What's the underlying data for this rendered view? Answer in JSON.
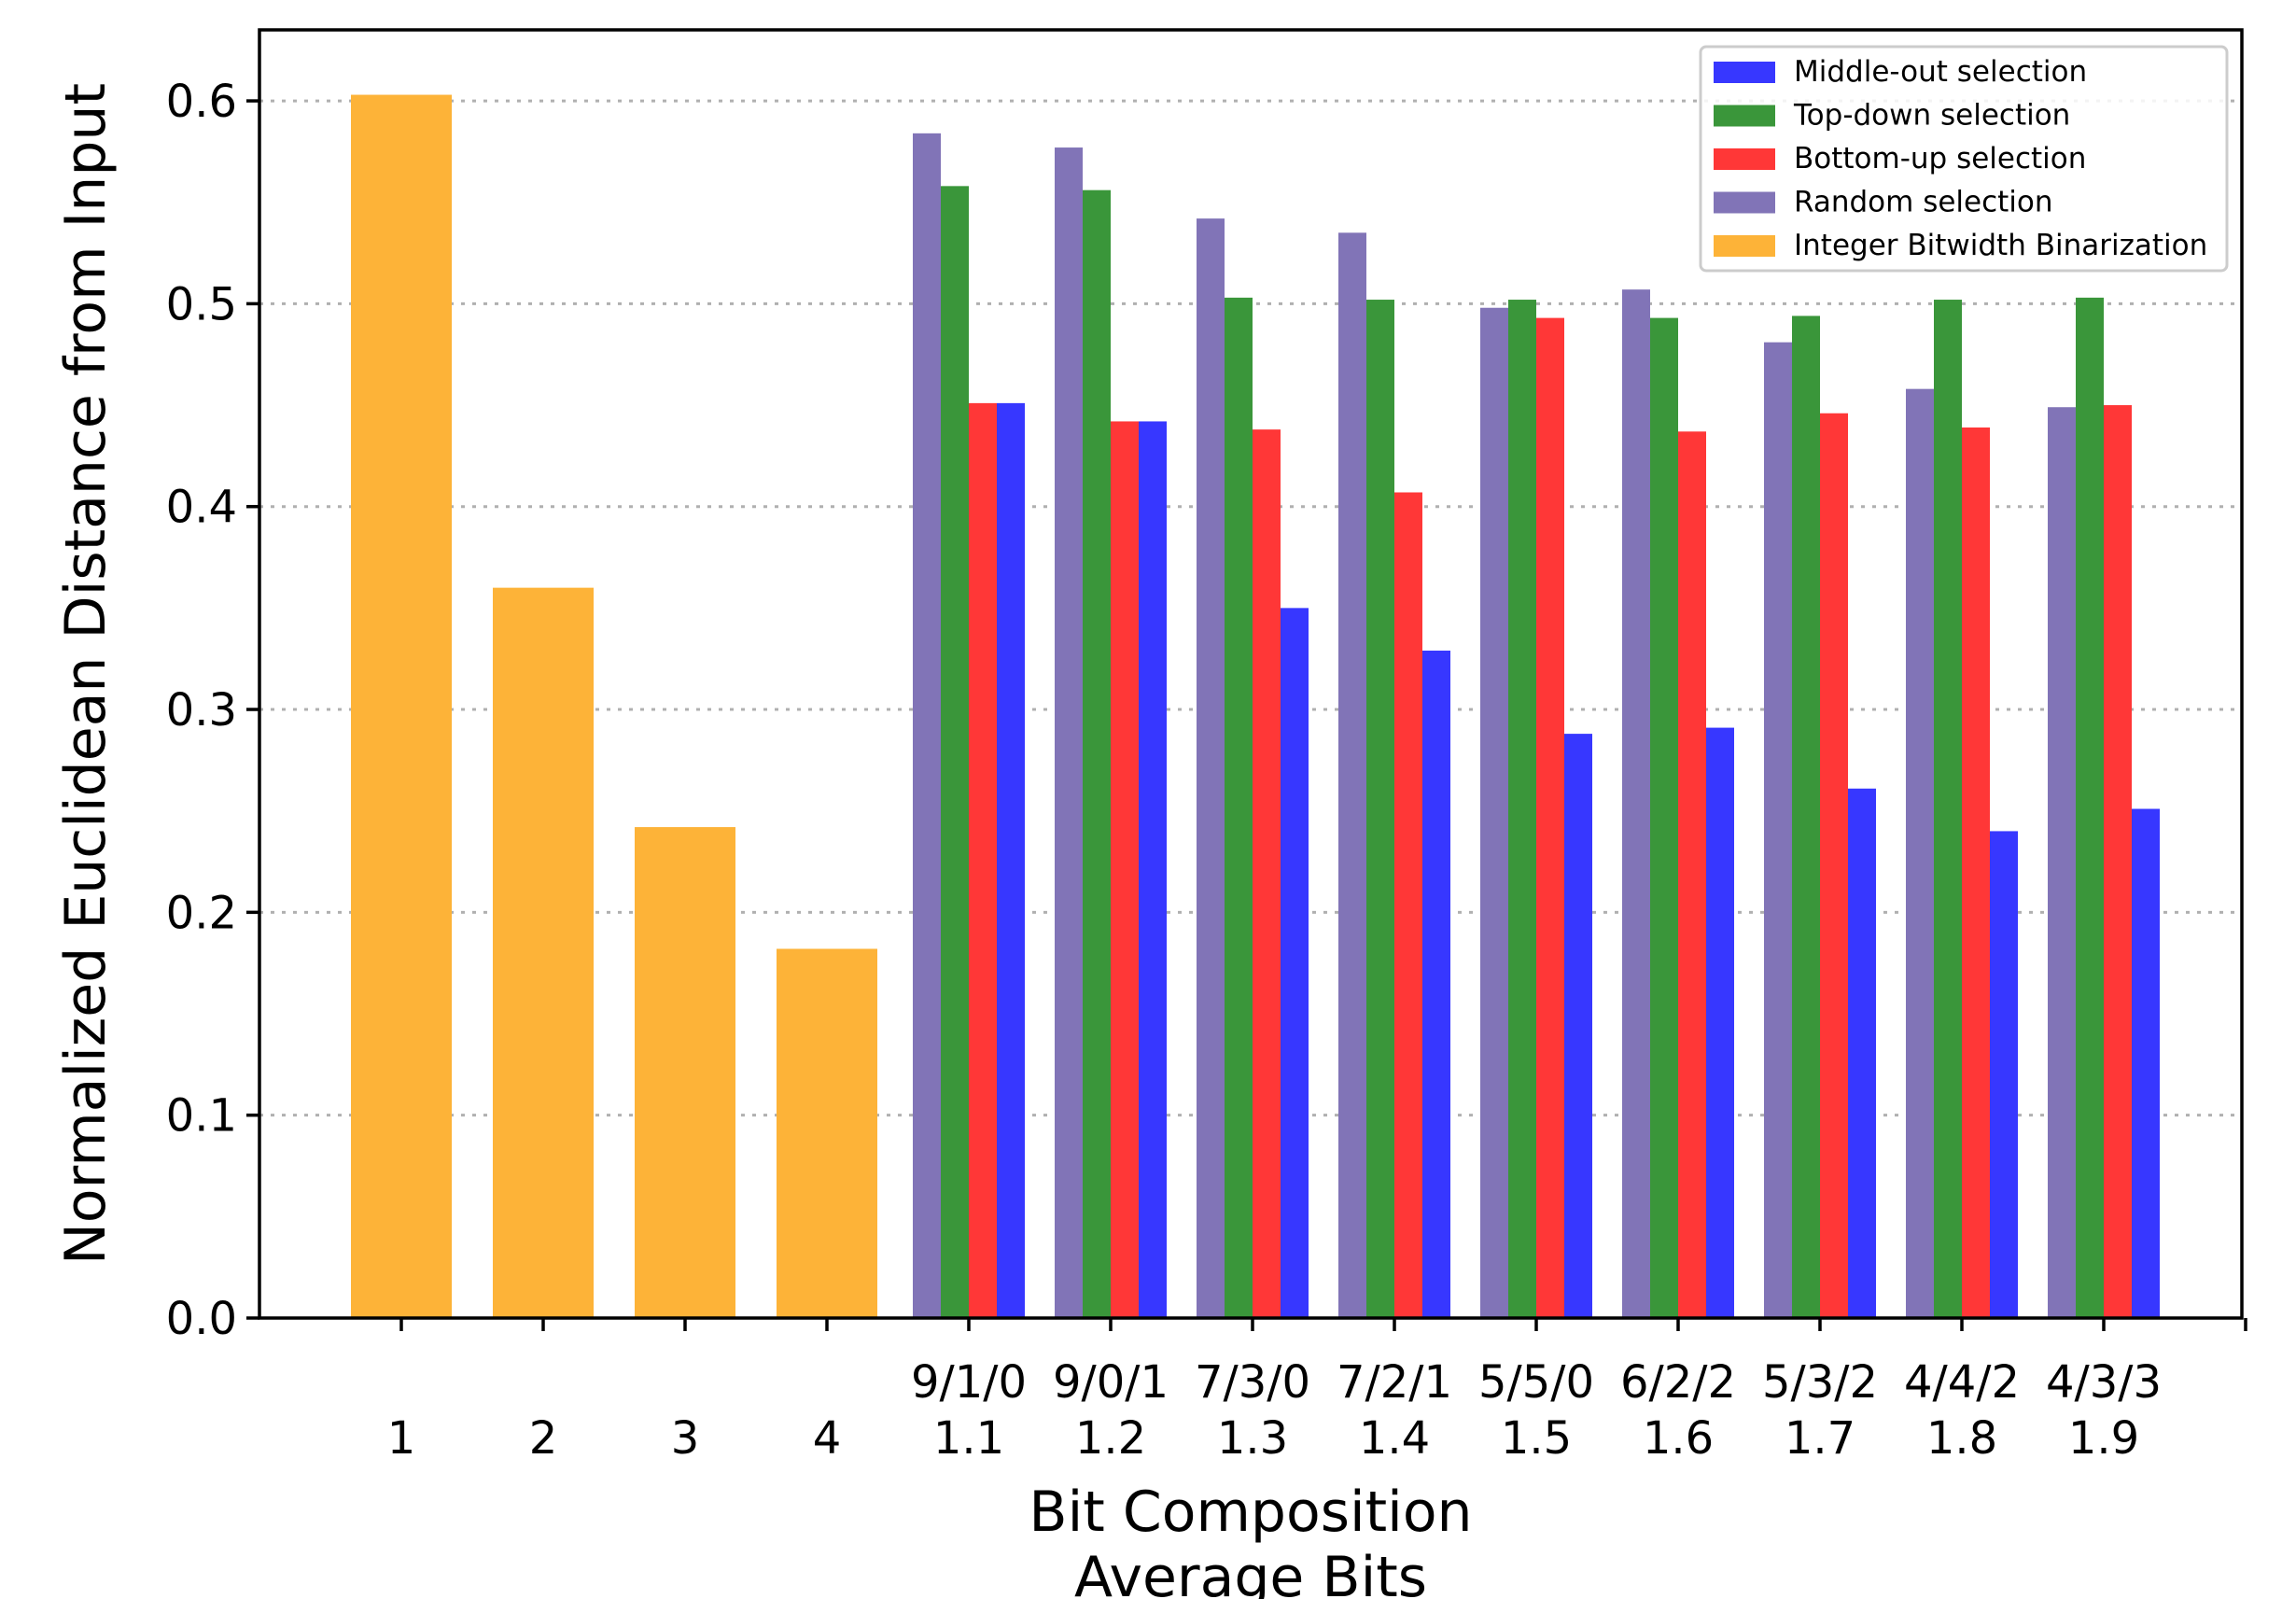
{
  "chart_data": {
    "type": "bar",
    "title": "",
    "xlabel": "Bit Composition",
    "xlabel2": "Average Bits",
    "ylabel": "Normalized Euclidean Distance from Input",
    "ylim": [
      0,
      0.635
    ],
    "yticks": [
      "0.0",
      "0.1",
      "0.2",
      "0.3",
      "0.4",
      "0.5",
      "0.6"
    ],
    "grid": "horizontal dotted",
    "legend_position": "top-right",
    "categories": [
      {
        "composition": "",
        "avg": "1"
      },
      {
        "composition": "",
        "avg": "2"
      },
      {
        "composition": "",
        "avg": "3"
      },
      {
        "composition": "",
        "avg": "4"
      },
      {
        "composition": "9/1/0",
        "avg": "1.1"
      },
      {
        "composition": "9/0/1",
        "avg": "1.2"
      },
      {
        "composition": "7/3/0",
        "avg": "1.3"
      },
      {
        "composition": "7/2/1",
        "avg": "1.4"
      },
      {
        "composition": "5/5/0",
        "avg": "1.5"
      },
      {
        "composition": "6/2/2",
        "avg": "1.6"
      },
      {
        "composition": "5/3/2",
        "avg": "1.7"
      },
      {
        "composition": "4/4/2",
        "avg": "1.8"
      },
      {
        "composition": "4/3/3",
        "avg": "1.9"
      }
    ],
    "series": [
      {
        "name": "Middle-out selection",
        "color": "#3737ff",
        "values": [
          null,
          null,
          null,
          null,
          0.451,
          0.442,
          0.35,
          0.329,
          0.288,
          0.291,
          0.261,
          0.24,
          0.251
        ]
      },
      {
        "name": "Top-down selection",
        "color": "#3a963a",
        "values": [
          null,
          null,
          null,
          null,
          0.558,
          0.556,
          0.503,
          0.502,
          0.502,
          0.493,
          0.494,
          0.502,
          0.503
        ]
      },
      {
        "name": "Bottom-up selection",
        "color": "#ff3737",
        "values": [
          null,
          null,
          null,
          null,
          0.451,
          0.442,
          0.438,
          0.407,
          0.493,
          0.437,
          0.446,
          0.439,
          0.45
        ]
      },
      {
        "name": "Random selection",
        "color": "#8174b7",
        "values": [
          null,
          null,
          null,
          null,
          0.584,
          0.577,
          0.542,
          0.535,
          0.498,
          0.507,
          0.481,
          0.458,
          0.449
        ]
      },
      {
        "name": "Integer Bitwidth Binarization",
        "color": "#fdb338",
        "values": [
          0.603,
          0.36,
          0.242,
          0.182,
          null,
          null,
          null,
          null,
          null,
          null,
          null,
          null,
          null
        ]
      }
    ]
  }
}
